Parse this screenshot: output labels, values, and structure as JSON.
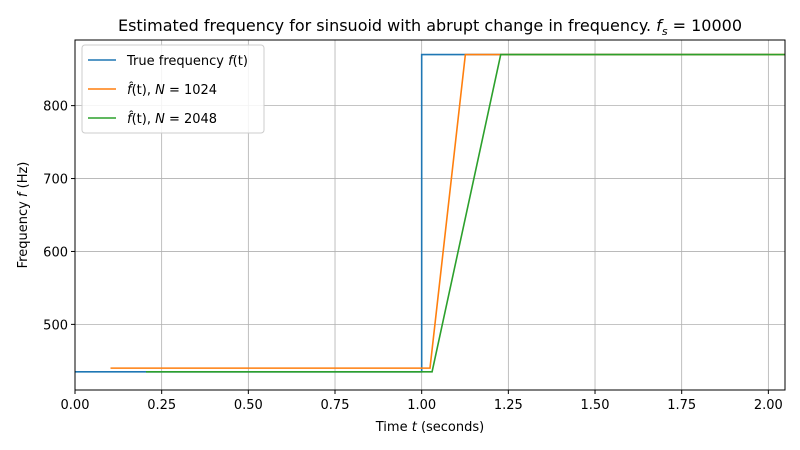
{
  "chart_data": {
    "type": "line",
    "title": "Estimated frequency for sinsuoid with abrupt change in frequency. f_s = 10000",
    "title_parts": [
      "Estimated frequency for sinsuoid with abrupt change in frequency. ",
      "f",
      "s",
      " = 10000"
    ],
    "xlabel": "Time t (seconds)",
    "xlabel_parts": [
      "Time ",
      "t",
      " (seconds)"
    ],
    "ylabel": "Frequency f (Hz)",
    "ylabel_parts": [
      "Frequency ",
      "f",
      " (Hz)"
    ],
    "xlim": [
      0.0,
      2.048
    ],
    "ylim": [
      410,
      890
    ],
    "xticks": [
      0.0,
      0.25,
      0.5,
      0.75,
      1.0,
      1.25,
      1.5,
      1.75,
      2.0
    ],
    "xtick_labels": [
      "0.00",
      "0.25",
      "0.50",
      "0.75",
      "1.00",
      "1.25",
      "1.50",
      "1.75",
      "2.00"
    ],
    "yticks": [
      500,
      600,
      700,
      800
    ],
    "ytick_labels": [
      "500",
      "600",
      "700",
      "800"
    ],
    "grid": true,
    "legend_position": "upper-left",
    "series": [
      {
        "name": "True frequency f(t)",
        "name_parts": [
          "True frequency ",
          "f",
          "(t)"
        ],
        "color": "#1f77b4",
        "x": [
          0.0,
          1.0,
          1.0,
          2.0
        ],
        "y": [
          435,
          435,
          870,
          870
        ]
      },
      {
        "name": "f̂(t), N = 1024",
        "name_parts": [
          "f̂",
          "(t), ",
          "N",
          " = 1024"
        ],
        "color": "#ff7f0e",
        "x": [
          0.1024,
          1.024,
          1.126,
          2.048
        ],
        "y": [
          440,
          440,
          870,
          870
        ]
      },
      {
        "name": "f̂(t), N = 2048",
        "name_parts": [
          "f̂",
          "(t), ",
          "N",
          " = 2048"
        ],
        "color": "#2ca02c",
        "x": [
          0.2048,
          1.03,
          1.228,
          2.048
        ],
        "y": [
          435,
          435,
          870,
          870
        ]
      }
    ]
  }
}
